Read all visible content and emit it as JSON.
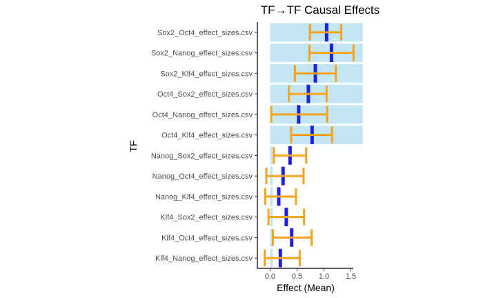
{
  "chart_data": {
    "type": "bar",
    "title": "TF→TF Causal Effects",
    "xlabel": "Effect (Mean)",
    "ylabel": "TF",
    "xlim": [
      -0.12,
      1.72
    ],
    "x_ticks": [
      0.0,
      0.5,
      1.0,
      1.5
    ],
    "x_tick_labels": [
      "0.0",
      "0.5",
      "1.0",
      "1.5"
    ],
    "grid": false,
    "orientation": "horizontal",
    "categories": [
      "Sox2_Oct4_effect_sizes.csv",
      "Sox2_Nanog_effect_sizes.csv",
      "Sox2_Klf4_effect_sizes.csv",
      "Oct4_Sox2_effect_sizes.csv",
      "Oct4_Nanog_effect_sizes.csv",
      "Oct4_Klf4_effect_sizes.csv",
      "Nanog_Sox2_effect_sizes.csv",
      "Nanog_Oct4_effect_sizes.csv",
      "Nanog_Klf4_effect_sizes.csv",
      "Klf4_Sox2_effect_sizes.csv",
      "Klf4_Oct4_effect_sizes.csv",
      "Klf4_Nanog_effect_sizes.csv"
    ],
    "series": [
      {
        "type": "bar",
        "values": [
          1.72,
          1.72,
          1.72,
          1.72,
          1.72,
          1.72,
          0.05,
          0.05,
          0.05,
          0.05,
          0.05,
          0.05
        ]
      },
      {
        "type": "mean",
        "values": [
          1.05,
          1.14,
          0.84,
          0.71,
          0.53,
          0.78,
          0.37,
          0.24,
          0.16,
          0.3,
          0.4,
          0.19
        ]
      },
      {
        "type": "error_bar",
        "lower": [
          0.74,
          0.73,
          0.46,
          0.35,
          0.02,
          0.39,
          0.07,
          -0.07,
          -0.09,
          -0.03,
          0.05,
          -0.1
        ],
        "upper": [
          1.32,
          1.55,
          1.22,
          1.05,
          1.06,
          1.15,
          0.67,
          0.62,
          0.48,
          0.63,
          0.77,
          0.55
        ]
      }
    ],
    "colors": {
      "bar": "#c3e5f4",
      "mean": "#1f1fe6",
      "error_bar": "#f5a31b"
    }
  }
}
